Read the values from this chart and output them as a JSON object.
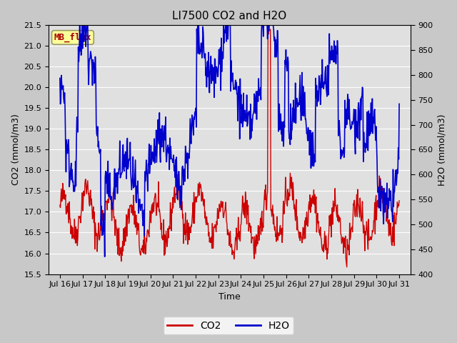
{
  "title": "LI7500 CO2 and H2O",
  "xlabel": "Time",
  "ylabel_left": "CO2 (mmol/m3)",
  "ylabel_right": "H2O (mmol/m3)",
  "co2_color": "#cc0000",
  "h2o_color": "#0000cc",
  "ylim_left": [
    15.5,
    21.5
  ],
  "ylim_right": [
    400,
    900
  ],
  "yticks_left": [
    15.5,
    16.0,
    16.5,
    17.0,
    17.5,
    18.0,
    18.5,
    19.0,
    19.5,
    20.0,
    20.5,
    21.0,
    21.5
  ],
  "yticks_right": [
    400,
    450,
    500,
    550,
    600,
    650,
    700,
    750,
    800,
    850,
    900
  ],
  "xtick_positions": [
    16,
    17,
    18,
    19,
    20,
    21,
    22,
    23,
    24,
    25,
    26,
    27,
    28,
    29,
    30,
    31
  ],
  "xtick_labels": [
    "Jul 16",
    "Jul 17",
    "Jul 18",
    "Jul 19",
    "Jul 20",
    "Jul 21",
    "Jul 22",
    "Jul 23",
    "Jul 24",
    "Jul 25",
    "Jul 26",
    "Jul 27",
    "Jul 28",
    "Jul 29",
    "Jul 30",
    "Jul 31"
  ],
  "xlim": [
    15.5,
    31.5
  ],
  "annotation_text": "MB_flux",
  "annotation_color": "#aa0000",
  "annotation_bg": "#ffff99",
  "annotation_border": "#999966",
  "fig_facecolor": "#c8c8c8",
  "plot_facecolor": "#e0e0e0",
  "grid_color": "#ffffff",
  "legend_co2": "CO2",
  "legend_h2o": "H2O",
  "title_fontsize": 11,
  "axis_label_fontsize": 9,
  "tick_fontsize": 8,
  "annotation_fontsize": 9,
  "legend_fontsize": 10,
  "linewidth_co2": 1.0,
  "linewidth_h2o": 1.2
}
